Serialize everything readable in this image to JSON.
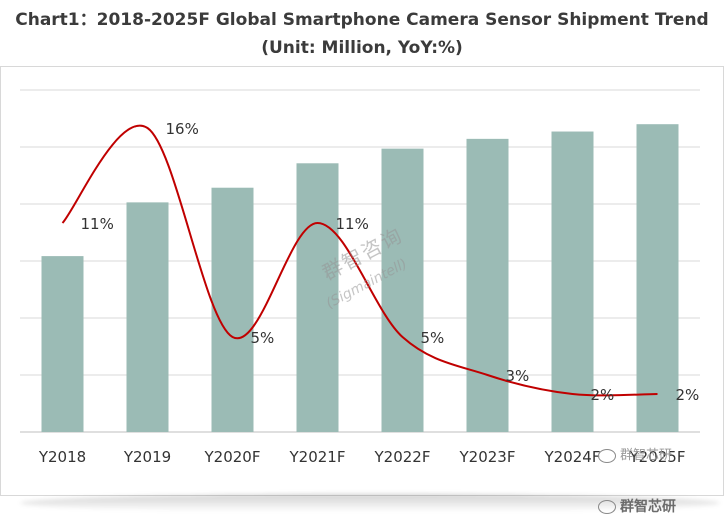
{
  "title": "Chart1：2018-2025F Global Smartphone Camera Sensor Shipment Trend (Unit: Million, YoY:%)",
  "watermarks": {
    "center_cn": "群智咨询",
    "center_en": "(Sigmaintell)",
    "wechat_right": "群智芯研",
    "wechat_bottom": "群智芯研"
  },
  "colors": {
    "bar": "#9bbbb5",
    "line": "#c00000",
    "grid": "#d9d9d9",
    "text": "#3b3b3b"
  },
  "chart_data": {
    "type": "bar",
    "title": "Chart1：2018-2025F Global Smartphone Camera Sensor Shipment Trend (Unit: Million, YoY:%)",
    "categories": [
      "Y2018",
      "Y2019",
      "Y2020F",
      "Y2021F",
      "Y2022F",
      "Y2023F",
      "Y2024F",
      "Y2025F"
    ],
    "series": [
      {
        "type": "bar",
        "values": [
          36,
          47,
          50,
          55,
          58,
          60,
          61.5,
          63
        ]
      },
      {
        "type": "line",
        "values": [
          11,
          16,
          5,
          11,
          5,
          3,
          2,
          2
        ],
        "labels": [
          "11%",
          "16%",
          "5%",
          "11%",
          "5%",
          "3%",
          "2%",
          "2%"
        ]
      }
    ],
    "xlabel": "",
    "ylabel": "",
    "ylim": [
      0,
      70
    ],
    "line_ylim": [
      0,
      18
    ],
    "grid": true,
    "legend": "none"
  }
}
